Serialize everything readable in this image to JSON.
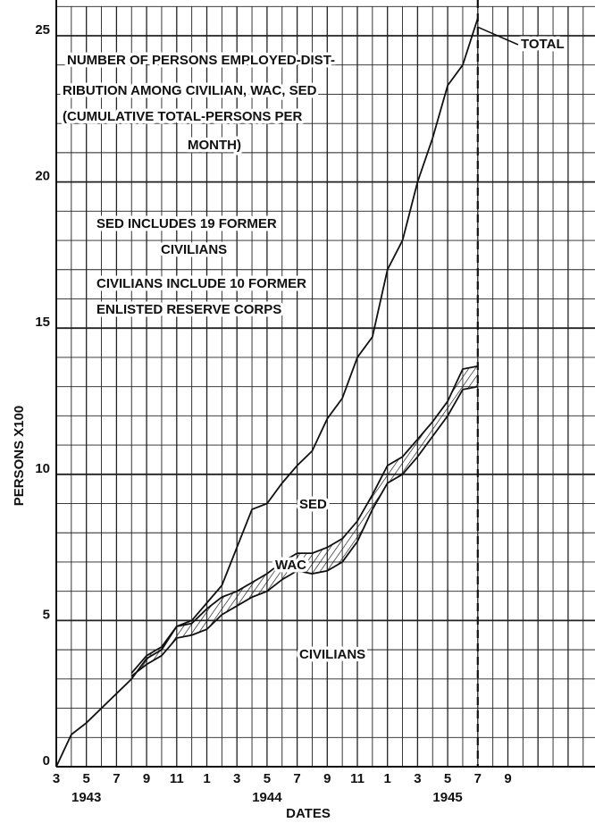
{
  "chart_data": {
    "type": "line",
    "title": [
      "NUMBER OF PERSONS EMPLOYED-DIST-",
      "RIBUTION AMONG CIVILIAN, WAC, SED",
      "(CUMULATIVE TOTAL-PERSONS PER",
      "MONTH)"
    ],
    "notes": [
      "SED INCLUDES 19 FORMER",
      "CIVILIANS",
      "CIVILIANS INCLUDE 10 FORMER",
      "ENLISTED RESERVE CORPS"
    ],
    "band_label": "SED",
    "y_label": "PERSONS X100",
    "x_label": "DATES",
    "year_labels": [
      "1943",
      "1944",
      "1945"
    ],
    "categories": [
      "3",
      null,
      "5",
      null,
      "7",
      null,
      "9",
      null,
      "11",
      null,
      "1",
      null,
      "3",
      null,
      "5",
      null,
      "7",
      null,
      "9",
      null,
      "11",
      null,
      "1",
      null,
      "3",
      null,
      "5",
      null,
      "7",
      null,
      "9",
      null,
      null,
      null,
      null,
      null
    ],
    "series": [
      {
        "name": "TOTAL",
        "color": "#111111",
        "values": [
          0,
          1.1,
          1.5,
          2.0,
          2.5,
          3.0,
          3.7,
          4.0,
          4.8,
          5.0,
          5.6,
          6.2,
          7.5,
          8.8,
          9.0,
          9.7,
          10.3,
          10.8,
          11.9,
          12.6,
          14.0,
          14.7,
          17.0,
          18.0,
          20.0,
          21.5,
          23.3,
          24.0,
          25.6,
          null,
          null,
          null,
          null,
          null,
          null,
          null
        ]
      },
      {
        "name": "WAC",
        "color": "#111111",
        "values": [
          null,
          null,
          null,
          null,
          null,
          3.2,
          3.8,
          4.1,
          4.8,
          4.9,
          5.4,
          5.8,
          6.0,
          6.3,
          6.6,
          7.0,
          7.3,
          7.3,
          7.5,
          7.8,
          8.4,
          9.3,
          10.3,
          10.6,
          11.2,
          11.8,
          12.5,
          13.6,
          13.7,
          null,
          null,
          null,
          null,
          null,
          null,
          null
        ]
      },
      {
        "name": "CIVILIANS",
        "color": "#111111",
        "values": [
          null,
          null,
          null,
          null,
          null,
          3.1,
          3.5,
          3.8,
          4.4,
          4.5,
          4.7,
          5.2,
          5.5,
          5.8,
          6.0,
          6.4,
          6.7,
          6.6,
          6.7,
          7.0,
          7.7,
          8.8,
          9.7,
          10.0,
          10.6,
          11.3,
          12.0,
          12.9,
          13.0,
          null,
          null,
          null,
          null,
          null,
          null,
          null
        ]
      }
    ],
    "ylim": [
      0,
      26
    ],
    "yticks": [
      0,
      5,
      10,
      15,
      20,
      25
    ],
    "ygrid": [
      0,
      1,
      2,
      3,
      4,
      5,
      6,
      7,
      8,
      9,
      10,
      11,
      12,
      13,
      14,
      15,
      16,
      17,
      18,
      19,
      20,
      21,
      22,
      23,
      24,
      25,
      26
    ],
    "grid": true
  }
}
